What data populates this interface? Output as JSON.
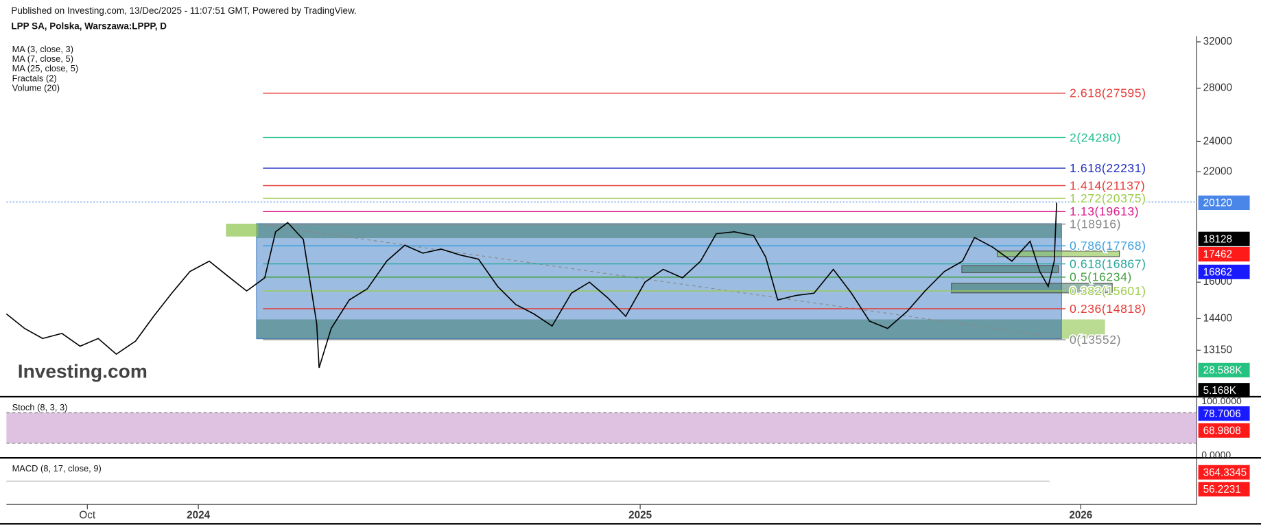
{
  "header": {
    "published": "Published on Investing.com, 13/Dec/2025 - 11:07:51 GMT, Powered by TradingView.",
    "symbol": "LPP SA, Polska, Warszawa:LPPP, D",
    "indicators": [
      "MA (3, close, 3)",
      "MA (7, close, 5)",
      "MA (25, close, 5)",
      "Fractals (2)",
      "Volume (20)"
    ],
    "watermark": "Investing.com"
  },
  "chart_data": {
    "type": "line",
    "log_scale": true,
    "color": "#000000",
    "x": [
      "2023-07-26",
      "2023-08-10",
      "2023-08-25",
      "2023-09-10",
      "2023-09-25",
      "2023-10-10",
      "2023-10-25",
      "2023-11-10",
      "2023-11-25",
      "2023-12-10",
      "2023-12-25",
      "2024-01-10",
      "2024-01-25",
      "2024-02-10",
      "2024-02-25",
      "2024-03-05",
      "2024-03-15",
      "2024-03-28",
      "2024-04-08",
      "2024-04-10",
      "2024-04-20",
      "2024-05-05",
      "2024-05-20",
      "2024-06-05",
      "2024-06-20",
      "2024-07-05",
      "2024-07-20",
      "2024-08-05",
      "2024-08-20",
      "2024-09-05",
      "2024-09-20",
      "2024-10-05",
      "2024-10-20",
      "2024-11-05",
      "2024-11-20",
      "2024-12-05",
      "2024-12-20",
      "2025-01-05",
      "2025-01-20",
      "2025-02-05",
      "2025-02-20",
      "2025-03-05",
      "2025-03-20",
      "2025-04-05",
      "2025-04-15",
      "2025-04-25",
      "2025-05-10",
      "2025-05-25",
      "2025-06-10",
      "2025-06-25",
      "2025-07-10",
      "2025-07-25",
      "2025-08-10",
      "2025-08-25",
      "2025-09-10",
      "2025-09-25",
      "2025-10-05",
      "2025-10-20",
      "2025-11-05",
      "2025-11-20",
      "2025-11-28",
      "2025-12-05",
      "2025-12-10",
      "2025-12-12"
    ],
    "values": [
      14600,
      14000,
      13600,
      13800,
      13300,
      13600,
      13000,
      13500,
      14500,
      15500,
      16500,
      17000,
      16300,
      15600,
      16200,
      18500,
      19000,
      18100,
      14200,
      12500,
      14000,
      15200,
      15700,
      17000,
      17800,
      17400,
      17600,
      17300,
      17100,
      15800,
      15000,
      14600,
      14100,
      15500,
      16000,
      15300,
      14500,
      16000,
      16600,
      16200,
      17000,
      18400,
      18500,
      18300,
      17200,
      15200,
      15400,
      15500,
      16600,
      15500,
      14300,
      14000,
      14700,
      15600,
      16500,
      17000,
      18200,
      17700,
      17000,
      18000,
      16500,
      15800,
      17000,
      20120
    ],
    "xlim": [
      "2023-07-26",
      "2026-04-07"
    ],
    "xticks": [
      {
        "value": "2023-10-01",
        "label": "Oct"
      },
      {
        "value": "2024-01-01",
        "label": "2024"
      },
      {
        "value": "2025-01-01",
        "label": "2025"
      },
      {
        "value": "2026-01-01",
        "label": "2026"
      }
    ],
    "ylim": [
      11527,
      32524
    ],
    "yticks": [
      32000,
      28000,
      24000,
      22000,
      16000,
      14400,
      13150
    ],
    "fib_levels": [
      {
        "label": "2.618(27595)",
        "value": 27595,
        "color": "#e53935"
      },
      {
        "label": "2(24280)",
        "value": 24280,
        "color": "#22c08f"
      },
      {
        "label": "1.618(22231)",
        "value": 22231,
        "color": "#2030c0"
      },
      {
        "label": "1.414(21137)",
        "value": 21137,
        "color": "#e53935"
      },
      {
        "label": "1.272(20375)",
        "value": 20375,
        "color": "#9ccc4a"
      },
      {
        "label": "1.13(19613)",
        "value": 19613,
        "color": "#d81b8a"
      },
      {
        "label": "1(18916)",
        "value": 18916,
        "color": "#888888"
      },
      {
        "label": "0.786(17768)",
        "value": 17768,
        "color": "#3aa0e0"
      },
      {
        "label": "0.618(16867)",
        "value": 16867,
        "color": "#26a69a"
      },
      {
        "label": "0.5(16234)",
        "value": 16234,
        "color": "#43a047"
      },
      {
        "label": "0.382(15601)",
        "value": 15601,
        "color": "#9ccc4a"
      },
      {
        "label": "0.236(14818)",
        "value": 14818,
        "color": "#e53935"
      },
      {
        "label": "0(13552)",
        "value": 13552,
        "color": "#888888"
      }
    ],
    "price_tags": [
      {
        "value": 20120,
        "color": "#4a86e8"
      },
      {
        "value": 18128,
        "color": "#000000"
      },
      {
        "value": 17462,
        "color": "#ff1a1a"
      },
      {
        "value": 16862,
        "color": "#1a1aff"
      }
    ],
    "volume_tags": [
      {
        "text": "28.588K",
        "color": "#26c281"
      },
      {
        "text": "5.168K",
        "color": "#000000"
      }
    ],
    "stoch": {
      "title": "Stoch (8, 3, 3)",
      "ticks": [
        "100.0000",
        "0.0000"
      ],
      "tags": [
        {
          "value": 78.7006,
          "color": "#1a1aff"
        },
        {
          "value": 68.9808,
          "color": "#ff1a1a"
        }
      ]
    },
    "macd": {
      "title": "MACD (8, 17, close, 9)",
      "tags": [
        {
          "value": 364.3345,
          "color": "#ff1a1a"
        },
        {
          "value": 56.2231,
          "color": "#ff1a1a"
        }
      ]
    }
  }
}
